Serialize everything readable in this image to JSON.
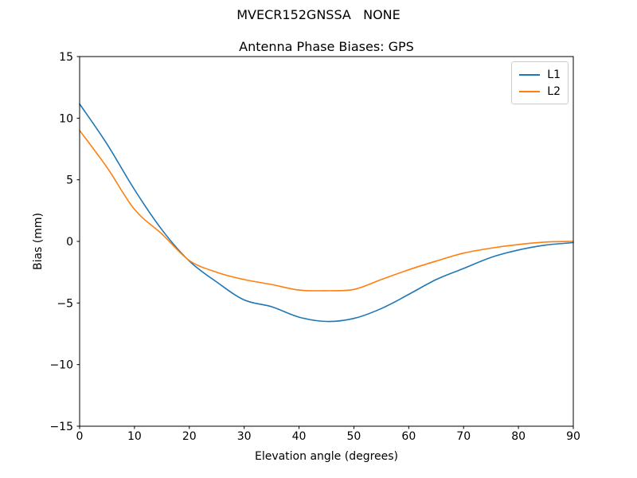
{
  "figure": {
    "suptitle": "MVECR152GNSSA   NONE"
  },
  "chart_data": {
    "type": "line",
    "title": "Antenna Phase Biases: GPS",
    "xlabel": "Elevation angle (degrees)",
    "ylabel": "Bias (mm)",
    "xlim": [
      0,
      90
    ],
    "ylim": [
      -15,
      15
    ],
    "xticks": [
      0,
      10,
      20,
      30,
      40,
      50,
      60,
      70,
      80,
      90
    ],
    "yticks": [
      15,
      10,
      5,
      0,
      -5,
      -10,
      -15
    ],
    "grid": false,
    "legend_position": "upper right",
    "background": "#ffffff",
    "spine_color": "#000000",
    "x": [
      0,
      5,
      10,
      15,
      20,
      25,
      30,
      35,
      40,
      45,
      50,
      55,
      60,
      65,
      70,
      75,
      80,
      85,
      90
    ],
    "series": [
      {
        "name": "L1",
        "color": "#1f77b4",
        "values": [
          11.15,
          7.9,
          4.2,
          0.95,
          -1.6,
          -3.3,
          -4.75,
          -5.3,
          -6.15,
          -6.5,
          -6.25,
          -5.45,
          -4.3,
          -3.1,
          -2.2,
          -1.3,
          -0.7,
          -0.3,
          -0.1
        ]
      },
      {
        "name": "L2",
        "color": "#ff7f0e",
        "values": [
          9.0,
          6.0,
          2.6,
          0.6,
          -1.55,
          -2.5,
          -3.1,
          -3.5,
          -3.95,
          -4.0,
          -3.9,
          -3.1,
          -2.3,
          -1.6,
          -0.95,
          -0.55,
          -0.25,
          -0.05,
          0.0
        ]
      }
    ]
  }
}
